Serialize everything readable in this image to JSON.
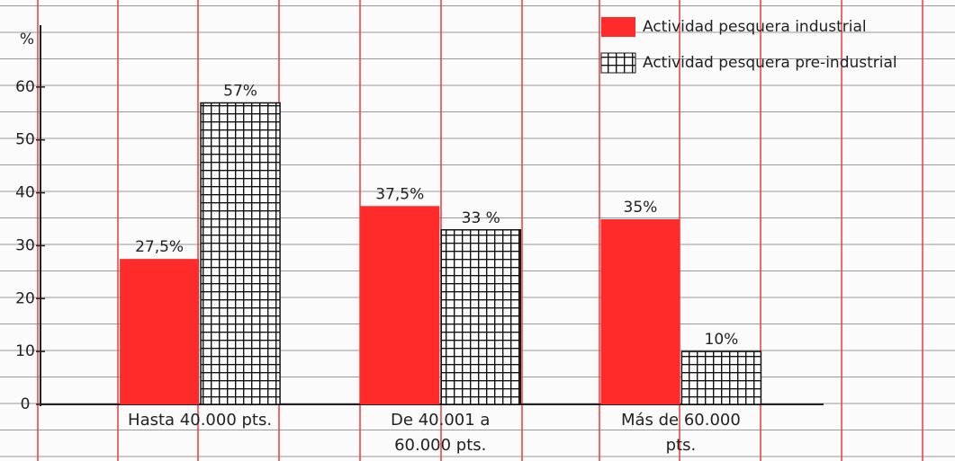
{
  "chart_data": {
    "type": "bar",
    "y_label": "%",
    "categories": [
      "Hasta 40.000 pts.",
      "De 40.001 a 60.000 pts.",
      "Más de 60.000 pts."
    ],
    "series": [
      {
        "name": "Actividad pesquera industrial",
        "color": "#ff2b2b",
        "pattern": "solid",
        "values": [
          27.5,
          37.5,
          35
        ],
        "value_labels": [
          "27,5%",
          "37,5%",
          "35%"
        ]
      },
      {
        "name": "Actividad pesquera pre-industrial",
        "color": "#111111",
        "pattern": "grid",
        "values": [
          57,
          33,
          10
        ],
        "value_labels": [
          "57%",
          "33 %",
          "10%"
        ]
      }
    ],
    "ylim": [
      0,
      70
    ],
    "yticks": [
      0,
      10,
      20,
      30,
      40,
      50,
      60
    ],
    "legend": "top-right"
  }
}
